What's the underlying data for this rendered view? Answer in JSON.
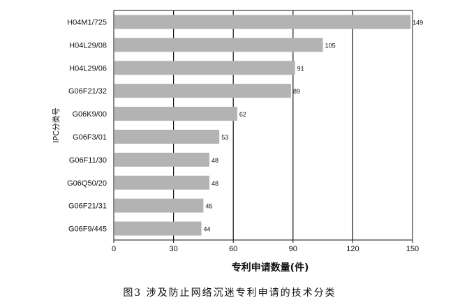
{
  "chart_data": {
    "type": "bar",
    "orientation": "horizontal",
    "categories": [
      "H04M1/725",
      "H04L29/08",
      "H04L29/06",
      "G06F21/32",
      "G06K9/00",
      "G06F3/01",
      "G06F11/30",
      "G06Q50/20",
      "G06F21/31",
      "G06F9/445"
    ],
    "values": [
      149,
      105,
      91,
      89,
      62,
      53,
      48,
      48,
      45,
      44
    ],
    "xlabel": "专利申请数量(件)",
    "ylabel": "IPC分类号",
    "xlim": [
      0,
      150
    ],
    "xticks": [
      0,
      30,
      60,
      90,
      120,
      150
    ],
    "grid": "vertical",
    "bar_color": "#b3b3b3",
    "caption": "图3  涉及防止网络沉迷专利申请的技术分类"
  }
}
